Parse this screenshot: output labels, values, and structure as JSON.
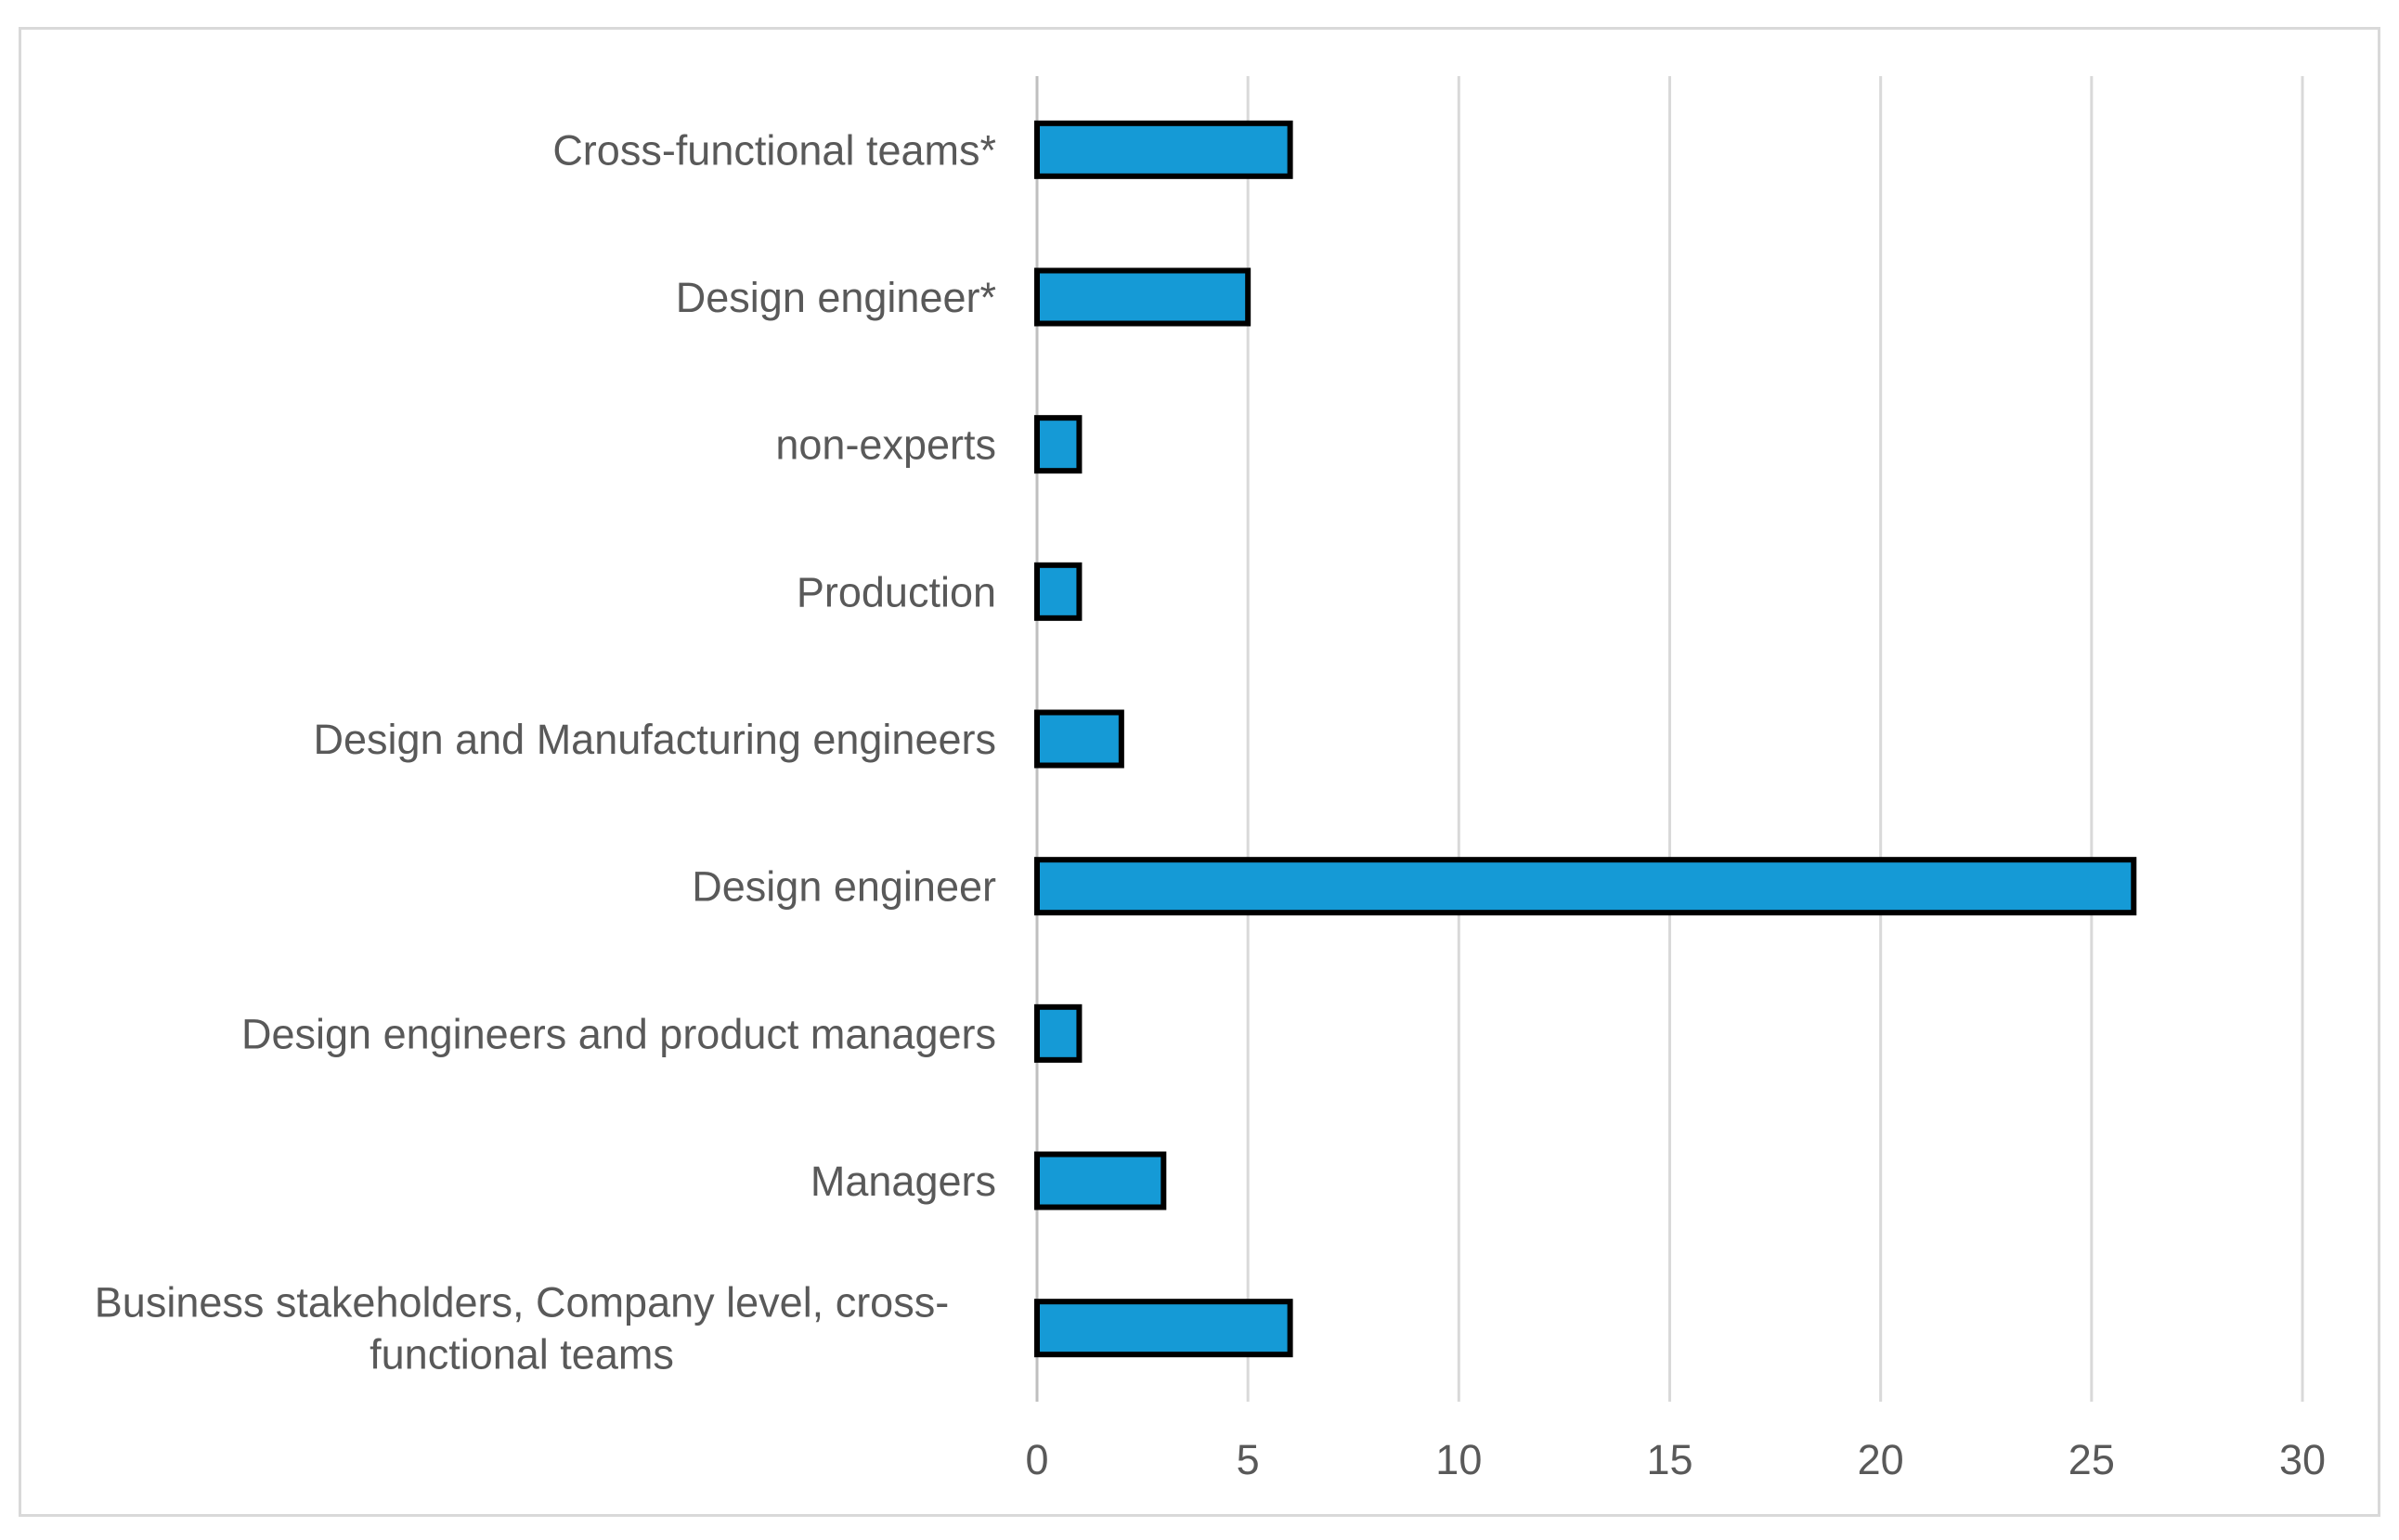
{
  "chart_data": {
    "type": "bar",
    "orientation": "horizontal",
    "title": "",
    "xlabel": "",
    "ylabel": "",
    "categories": [
      "Cross-functional teams*",
      "Design engineer*",
      "non-experts",
      "Production",
      "Design and Manufacturing engineers",
      "Design engineer",
      "Design engineers and product managers",
      "Managers",
      "Business stakeholders, Company level, cross-functional teams"
    ],
    "category_lines": [
      [
        "Cross-functional teams*"
      ],
      [
        "Design engineer*"
      ],
      [
        "non-experts"
      ],
      [
        "Production"
      ],
      [
        "Design and Manufacturing engineers"
      ],
      [
        "Design engineer"
      ],
      [
        "Design engineers and product managers"
      ],
      [
        "Managers"
      ],
      [
        "Business stakeholders, Company level, cross-",
        "functional teams"
      ]
    ],
    "values": [
      6,
      5,
      1,
      1,
      2,
      26,
      1,
      3,
      6
    ],
    "xlim": [
      0,
      30
    ],
    "xticks": [
      0,
      5,
      10,
      15,
      20,
      25,
      30
    ],
    "grid": true,
    "legend": "none",
    "colors": {
      "bar_fill": "#159ad6",
      "bar_edge": "#000000",
      "grid": "#d9d9d9",
      "text": "#595959"
    }
  }
}
